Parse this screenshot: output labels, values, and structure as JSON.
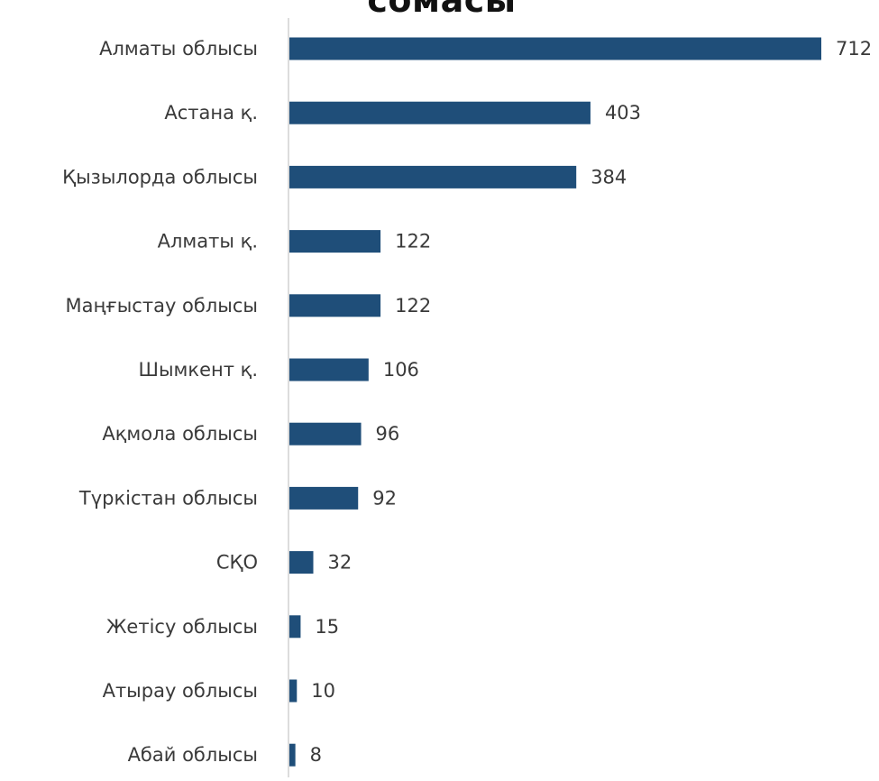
{
  "chart_data": {
    "type": "bar",
    "orientation": "horizontal",
    "title": "сомасы",
    "xlabel": "",
    "ylabel": "",
    "categories": [
      "Алматы облысы",
      "Астана қ.",
      "Қызылорда облысы",
      "Алматы қ.",
      "Маңғыстау облысы",
      "Шымкент қ.",
      "Ақмола облысы",
      "Түркістан облысы",
      "СҚО",
      "Жетісу облысы",
      "Атырау облысы",
      "Абай облысы"
    ],
    "values": [
      712,
      403,
      384,
      122,
      122,
      106,
      96,
      92,
      32,
      15,
      10,
      8
    ],
    "xlim": [
      0,
      712
    ],
    "grid": false,
    "legend": "none",
    "data_labels": true,
    "bar_color": "#1f4e79"
  }
}
